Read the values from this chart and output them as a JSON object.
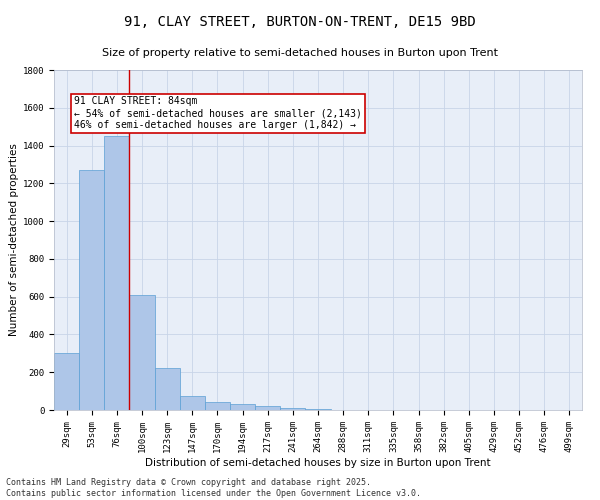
{
  "title": "91, CLAY STREET, BURTON-ON-TRENT, DE15 9BD",
  "subtitle": "Size of property relative to semi-detached houses in Burton upon Trent",
  "xlabel": "Distribution of semi-detached houses by size in Burton upon Trent",
  "ylabel": "Number of semi-detached properties",
  "categories": [
    "29sqm",
    "53sqm",
    "76sqm",
    "100sqm",
    "123sqm",
    "147sqm",
    "170sqm",
    "194sqm",
    "217sqm",
    "241sqm",
    "264sqm",
    "288sqm",
    "311sqm",
    "335sqm",
    "358sqm",
    "382sqm",
    "405sqm",
    "429sqm",
    "452sqm",
    "476sqm",
    "499sqm"
  ],
  "values": [
    300,
    1270,
    1450,
    610,
    220,
    75,
    40,
    30,
    20,
    10,
    5,
    0,
    0,
    0,
    0,
    0,
    0,
    0,
    0,
    0,
    0
  ],
  "bar_color": "#aec6e8",
  "bar_edge_color": "#5a9fd4",
  "annotation_title": "91 CLAY STREET: 84sqm",
  "annotation_line1": "← 54% of semi-detached houses are smaller (2,143)",
  "annotation_line2": "46% of semi-detached houses are larger (1,842) →",
  "annotation_box_color": "#ffffff",
  "annotation_box_edge": "#cc0000",
  "vline_color": "#cc0000",
  "vline_x_index": 2.5,
  "ylim": [
    0,
    1800
  ],
  "yticks": [
    0,
    200,
    400,
    600,
    800,
    1000,
    1200,
    1400,
    1600,
    1800
  ],
  "grid_color": "#c8d4e8",
  "background_color": "#e8eef8",
  "footer_line1": "Contains HM Land Registry data © Crown copyright and database right 2025.",
  "footer_line2": "Contains public sector information licensed under the Open Government Licence v3.0.",
  "title_fontsize": 10,
  "subtitle_fontsize": 8,
  "axis_label_fontsize": 7.5,
  "tick_fontsize": 6.5,
  "annotation_fontsize": 7,
  "footer_fontsize": 6
}
